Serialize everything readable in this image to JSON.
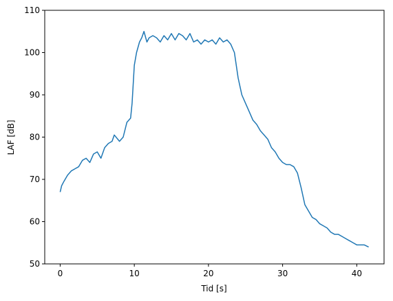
{
  "chart_data": {
    "type": "line",
    "x_label": "Tid [s]",
    "y_label": "LAF [dB]",
    "x": [
      0,
      0.2,
      0.5,
      1,
      1.5,
      2,
      2.5,
      3,
      3.5,
      4,
      4.5,
      5,
      5.5,
      6,
      6.5,
      7,
      7.3,
      8,
      8.5,
      9,
      9.5,
      9.7,
      10,
      10.3,
      10.7,
      11,
      11.3,
      11.7,
      12,
      12.5,
      13,
      13.5,
      14,
      14.5,
      15,
      15.5,
      16,
      16.5,
      17,
      17.5,
      18,
      18.5,
      19,
      19.5,
      20,
      20.5,
      21,
      21.5,
      22,
      22.5,
      23,
      23.5,
      24,
      24.5,
      25,
      25.5,
      26,
      26.5,
      27,
      27.5,
      28,
      28.5,
      29,
      29.5,
      30,
      30.5,
      31,
      31.5,
      32,
      32.5,
      33,
      33.5,
      34,
      34.5,
      35,
      35.5,
      36,
      36.5,
      37,
      37.5,
      38,
      38.5,
      39,
      39.5,
      40,
      40.5,
      41,
      41.6
    ],
    "series": [
      {
        "color": "#1f77b4",
        "values": [
          67,
          68.5,
          69.5,
          71,
          72,
          72.5,
          73,
          74.5,
          75,
          74,
          76,
          76.5,
          75,
          77.5,
          78.5,
          79,
          80.5,
          79,
          80,
          83.5,
          84.5,
          88,
          97,
          100,
          102.5,
          103.5,
          105,
          102.5,
          103.5,
          104,
          103.5,
          102.5,
          104,
          103,
          104.5,
          103,
          104.5,
          104,
          103,
          104.5,
          102.5,
          103,
          102,
          103,
          102.5,
          103,
          102,
          103.5,
          102.5,
          103,
          102,
          100,
          94,
          90,
          88,
          86,
          84,
          83,
          81.5,
          80.5,
          79.5,
          77.5,
          76.5,
          75,
          74,
          73.5,
          73.5,
          73,
          71.5,
          68,
          64,
          62.5,
          61,
          60.5,
          59.5,
          59,
          58.5,
          57.5,
          57,
          57,
          56.5,
          56,
          55.5,
          55,
          54.5,
          54.5,
          54.5,
          54
        ]
      }
    ],
    "xlim": [
      -2.08,
      43.68
    ],
    "xticks": [
      0,
      10,
      20,
      30,
      40
    ],
    "ylim": [
      50,
      110
    ],
    "yticks": [
      50,
      60,
      70,
      80,
      90,
      100,
      110
    ]
  }
}
